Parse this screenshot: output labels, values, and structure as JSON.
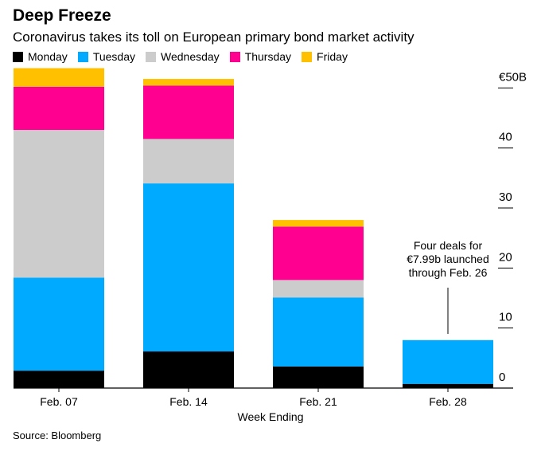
{
  "chart_data": {
    "type": "bar",
    "stacked": true,
    "title": "Deep Freeze",
    "subtitle": "Coronavirus takes its toll on European primary bond market activity",
    "xlabel": "Week Ending",
    "ylabel": "",
    "unit_prefix": "€",
    "unit_suffix": "B",
    "categories": [
      "Feb. 07",
      "Feb. 14",
      "Feb. 21",
      "Feb. 28"
    ],
    "series": [
      {
        "name": "Monday",
        "color": "#000000",
        "values": [
          2.9,
          6.1,
          3.6,
          0.7
        ]
      },
      {
        "name": "Tuesday",
        "color": "#00aaff",
        "values": [
          15.5,
          28.0,
          11.5,
          7.29
        ]
      },
      {
        "name": "Wednesday",
        "color": "#cccccc",
        "values": [
          24.6,
          7.4,
          2.9,
          0
        ]
      },
      {
        "name": "Thursday",
        "color": "#ff0090",
        "values": [
          7.2,
          8.9,
          8.9,
          0
        ]
      },
      {
        "name": "Friday",
        "color": "#ffc000",
        "values": [
          3.1,
          1.1,
          1.1,
          0
        ]
      }
    ],
    "ylim": [
      0,
      53.5
    ],
    "yticks": [
      0,
      10,
      20,
      30,
      40,
      50
    ],
    "ytick_labels": [
      "0",
      "10",
      "20",
      "30",
      "40",
      "€50B"
    ],
    "y_axis_position": "right",
    "grid": false,
    "legend_position": "top-left",
    "annotations": [
      {
        "category": "Feb. 28",
        "lines": [
          "Four deals for",
          "€7.99b launched",
          "through Feb. 26"
        ]
      }
    ]
  },
  "source": "Source: Bloomberg"
}
